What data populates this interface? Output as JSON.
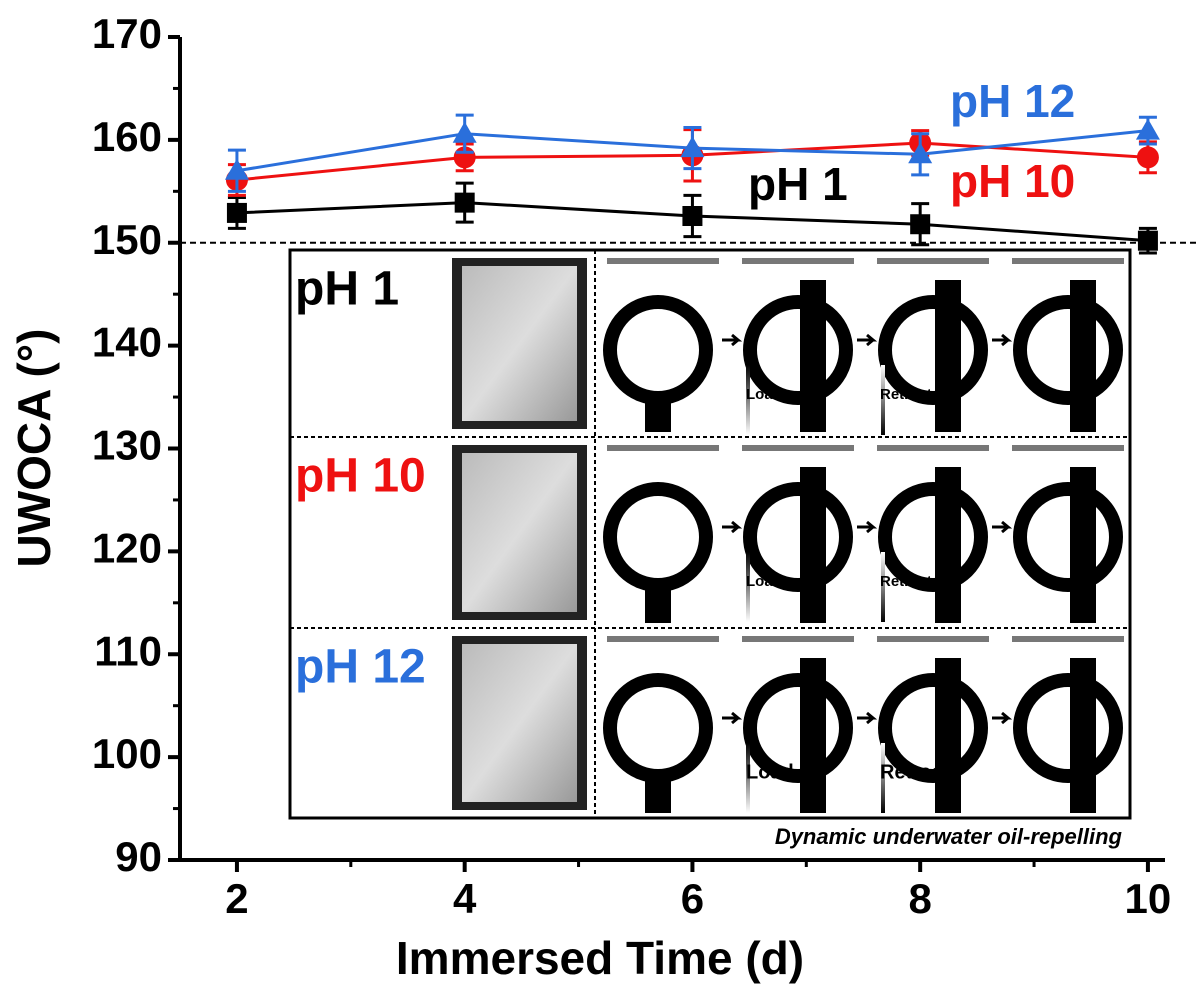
{
  "chart_data": {
    "type": "line",
    "x_label": "Immersed Time (d)",
    "y_label": "UWOCA (°)",
    "xlim": [
      1.5,
      10.15
    ],
    "ylim": [
      90,
      170
    ],
    "xticks": [
      2,
      4,
      6,
      8,
      10
    ],
    "yticks": [
      90,
      100,
      110,
      120,
      130,
      140,
      150,
      160,
      170
    ],
    "x_minor_ticks": [
      3,
      5,
      7,
      9
    ],
    "y_minor_ticks": [
      95,
      105,
      115,
      125,
      135,
      145,
      155,
      165
    ],
    "reference_line": 150,
    "x": [
      2,
      4,
      6,
      8,
      10
    ],
    "series": [
      {
        "name": "pH 1",
        "color": "#000000",
        "marker": "square",
        "values": [
          152.9,
          153.9,
          152.6,
          151.8,
          150.2
        ],
        "errors": [
          1.5,
          1.9,
          2.0,
          2.0,
          1.2
        ]
      },
      {
        "name": "pH 10",
        "color": "#ee1111",
        "marker": "circle",
        "values": [
          156.1,
          158.3,
          158.5,
          159.7,
          158.3
        ],
        "errors": [
          1.5,
          1.3,
          2.5,
          1.2,
          1.5
        ]
      },
      {
        "name": "pH 12",
        "color": "#2a6fdb",
        "marker": "triangle",
        "values": [
          157.0,
          160.6,
          159.2,
          158.6,
          160.9
        ],
        "errors": [
          2.0,
          1.8,
          2.0,
          2.0,
          1.3
        ]
      }
    ],
    "inset": {
      "rows": [
        {
          "label": "pH 1",
          "color": "#000000",
          "load": "Load",
          "retract": "Retract"
        },
        {
          "label": "pH 10",
          "color": "#ee1111",
          "load": "Load",
          "retract": "Retract"
        },
        {
          "label": "pH 12",
          "color": "#2a6fdb",
          "load": "Load",
          "retract": "Retract"
        }
      ],
      "caption": "Dynamic underwater oil-repelling"
    }
  }
}
